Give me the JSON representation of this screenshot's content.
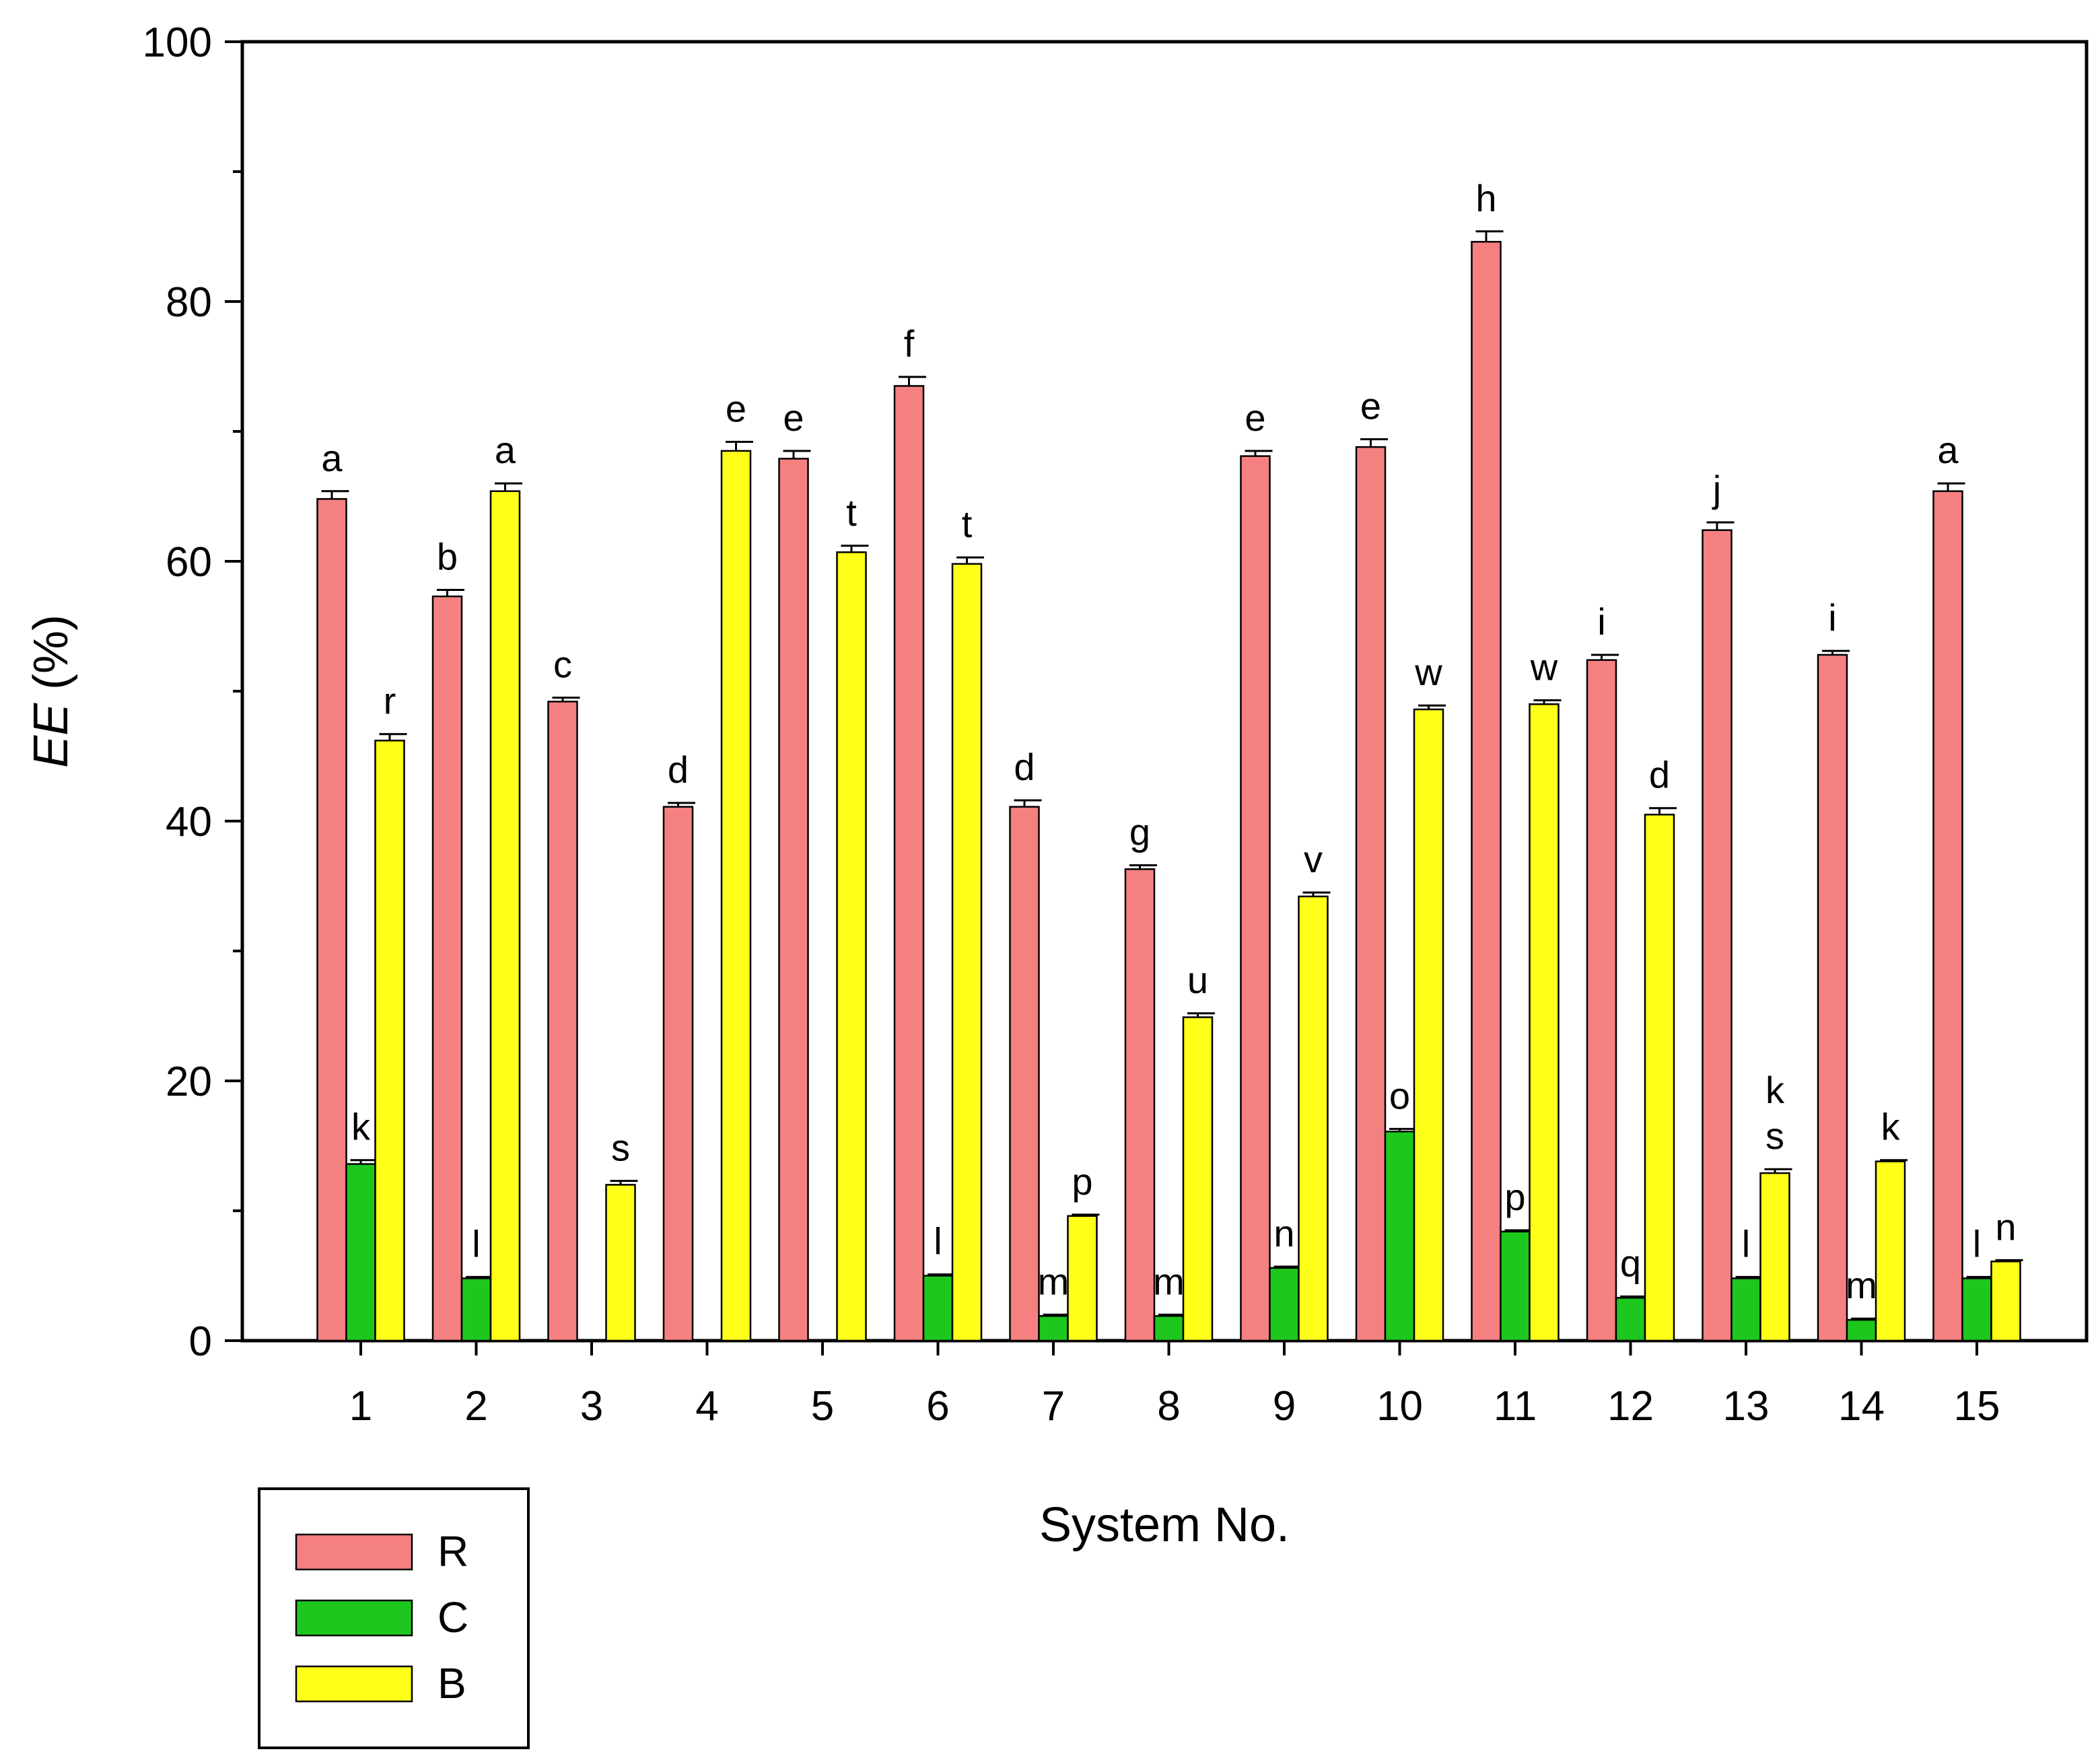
{
  "chart_data": {
    "type": "bar",
    "title": "",
    "xlabel": "System No.",
    "ylabel_italic": "EE",
    "ylabel_unit": " (%)",
    "ylim": [
      0,
      100
    ],
    "yticks": [
      0,
      20,
      40,
      60,
      80,
      100
    ],
    "categories": [
      "1",
      "2",
      "3",
      "4",
      "5",
      "6",
      "7",
      "8",
      "9",
      "10",
      "11",
      "12",
      "13",
      "14",
      "15"
    ],
    "series": [
      {
        "name": "R",
        "color": "#f58080",
        "values": [
          64.8,
          57.3,
          49.2,
          41.1,
          67.9,
          73.5,
          41.1,
          36.3,
          68.1,
          68.8,
          84.6,
          52.4,
          62.4,
          52.8,
          65.4
        ],
        "errors": [
          0.6,
          0.5,
          0.3,
          0.3,
          0.6,
          0.7,
          0.5,
          0.3,
          0.4,
          0.6,
          0.8,
          0.4,
          0.6,
          0.3,
          0.6
        ],
        "letters": [
          "a",
          "b",
          "c",
          "d",
          "e",
          "f",
          "d",
          "g",
          "e",
          "e",
          "h",
          "i",
          "j",
          "i",
          "a"
        ]
      },
      {
        "name": "C",
        "color": "#1ec71e",
        "values": [
          13.6,
          4.8,
          null,
          null,
          null,
          5.0,
          1.9,
          1.9,
          5.6,
          16.1,
          8.4,
          3.3,
          4.8,
          1.6,
          4.8
        ],
        "errors": [
          0.3,
          0.1,
          0,
          0,
          0,
          0.1,
          0.1,
          0.1,
          0.1,
          0.2,
          0.1,
          0.1,
          0.1,
          0.1,
          0.1
        ],
        "letters": [
          "k",
          "l",
          "",
          "",
          "",
          "l",
          "m",
          "m",
          "n",
          "o",
          "p",
          "q",
          "l",
          "m",
          "l"
        ]
      },
      {
        "name": "B",
        "color": "#ffff19",
        "values": [
          46.2,
          65.4,
          12.0,
          68.5,
          60.7,
          59.8,
          9.6,
          24.9,
          34.2,
          48.6,
          49.0,
          40.5,
          12.9,
          13.8,
          6.1
        ],
        "errors": [
          0.5,
          0.6,
          0.3,
          0.7,
          0.5,
          0.5,
          0.1,
          0.3,
          0.3,
          0.3,
          0.3,
          0.5,
          0.3,
          0.1,
          0.1
        ],
        "letters": [
          "r",
          "a",
          "s",
          "e",
          "t",
          "t",
          "p",
          "u",
          "v",
          "w",
          "w",
          "d",
          "k\ns",
          "k",
          "n"
        ]
      }
    ],
    "legend_position": "bottom-left"
  }
}
